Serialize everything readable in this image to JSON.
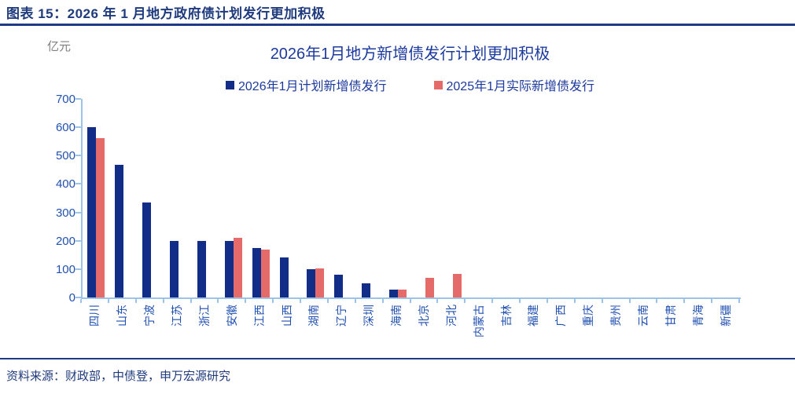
{
  "figure": {
    "caption": "图表 15：2026 年 1 月地方政府债计划发行更加积极",
    "source": "资料来源：财政部，中债登，申万宏源研究"
  },
  "chart_data": {
    "type": "bar",
    "title": "2026年1月地方新增债发行计划更加积极",
    "unit_label": "亿元",
    "ylabel": "亿元",
    "xlabel": "",
    "ylim": [
      0,
      700
    ],
    "yticks": [
      0,
      100,
      200,
      300,
      400,
      500,
      600,
      700
    ],
    "grid": false,
    "legend_position": "top",
    "categories": [
      "四川",
      "山东",
      "宁波",
      "江苏",
      "浙江",
      "安徽",
      "江西",
      "山西",
      "湖南",
      "辽宁",
      "深圳",
      "海南",
      "北京",
      "河北",
      "内蒙古",
      "吉林",
      "福建",
      "广西",
      "重庆",
      "贵州",
      "云南",
      "甘肃",
      "青海",
      "新疆"
    ],
    "series": [
      {
        "name": "2026年1月计划新增债发行",
        "color": "#112D87",
        "values": [
          600,
          467,
          335,
          200,
          200,
          200,
          175,
          140,
          100,
          79,
          50,
          29,
          null,
          null,
          null,
          null,
          null,
          null,
          null,
          null,
          null,
          null,
          null,
          null
        ]
      },
      {
        "name": "2025年1月实际新增债发行",
        "color": "#E56B6B",
        "values": [
          562,
          null,
          null,
          null,
          null,
          211,
          168,
          null,
          102,
          null,
          null,
          27,
          69,
          82,
          null,
          null,
          null,
          null,
          null,
          null,
          null,
          null,
          null,
          null
        ]
      }
    ]
  },
  "colors": {
    "caption_navy": "#1F3B7D",
    "title_blue": "#1C3A9E",
    "axis_label_blue": "#2050B0",
    "axis_line_blue": "#9DC3E6",
    "bar_blue": "#112D87",
    "bar_red": "#E56B6B",
    "unit_gray": "#7F7F7F"
  }
}
